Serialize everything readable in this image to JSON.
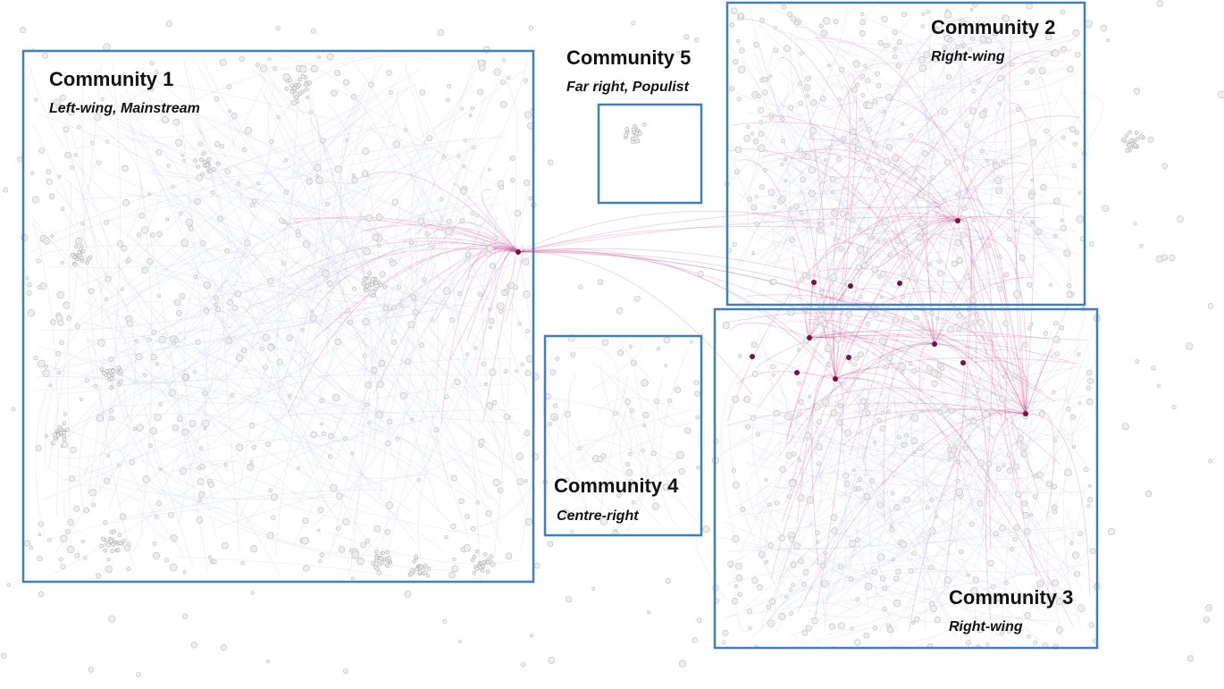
{
  "communities": [
    {
      "title": "Community 1",
      "subtitle": "Left-wing, Mainstream"
    },
    {
      "title": "Community 2",
      "subtitle": "Right-wing"
    },
    {
      "title": "Community 3",
      "subtitle": "Right-wing"
    },
    {
      "title": "Community 4",
      "subtitle": "Centre-right"
    },
    {
      "title": "Community 5",
      "subtitle": "Far right, Populist"
    }
  ]
}
